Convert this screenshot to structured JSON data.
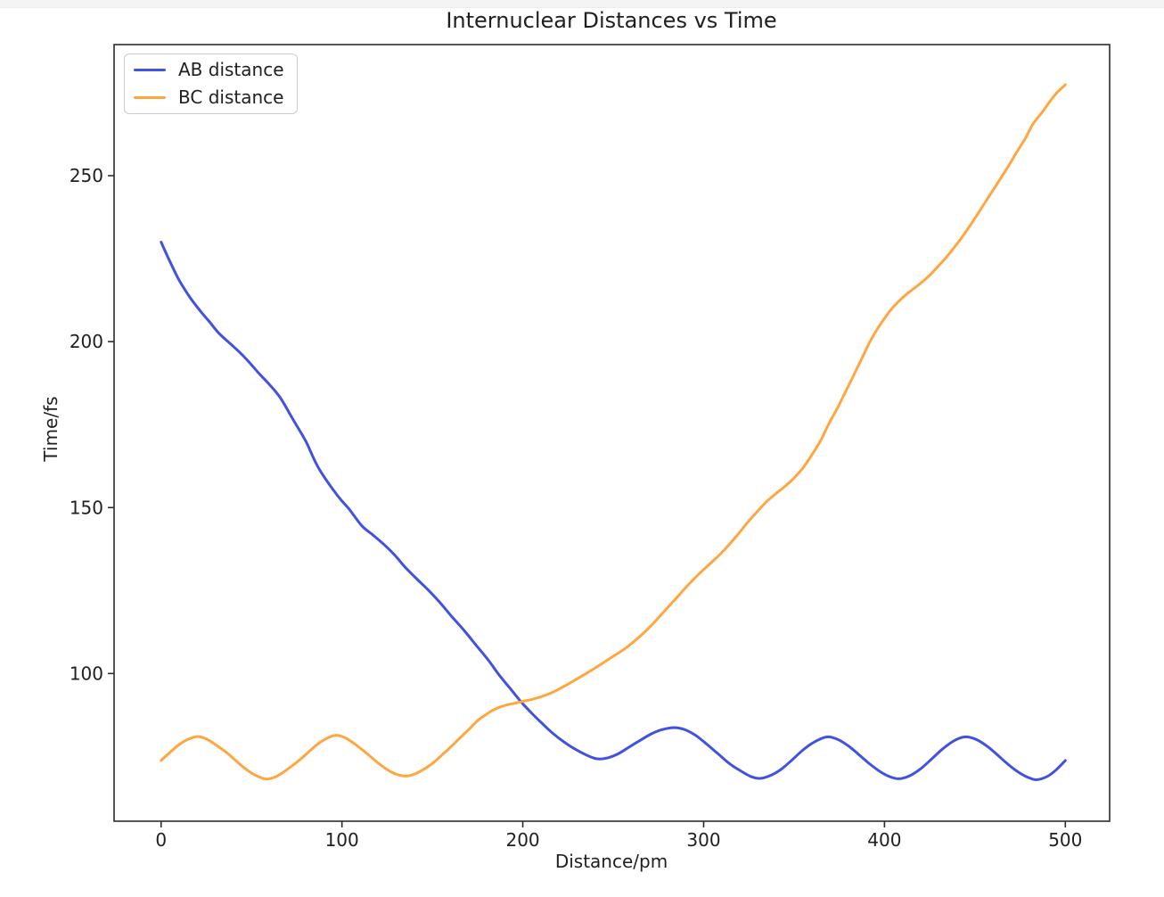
{
  "figure": {
    "background": "#ffffff",
    "top_strip_color": "#f4f4f4"
  },
  "chart_data": {
    "type": "line",
    "title": "Internuclear Distances vs Time",
    "xlabel": "Distance/pm",
    "ylabel": "Time/fs",
    "xlim": [
      -26,
      524.5
    ],
    "ylim": [
      55.5,
      289.5
    ],
    "xticks": [
      0,
      100,
      200,
      300,
      400,
      500
    ],
    "yticks": [
      100,
      150,
      200,
      250
    ],
    "grid": false,
    "axis_color": "#2b2b2b",
    "text_color": "#1f1f1f",
    "legend": {
      "position": "upper-left",
      "border_color": "#cccccc",
      "background": "#ffffff"
    },
    "series": [
      {
        "name": "AB distance",
        "color": "#4152e0",
        "points": [
          [
            0,
            230
          ],
          [
            5,
            224
          ],
          [
            10,
            218.5
          ],
          [
            16,
            213.3
          ],
          [
            22,
            209
          ],
          [
            27,
            205.8
          ],
          [
            32,
            202.5
          ],
          [
            38,
            199.5
          ],
          [
            44,
            196.5
          ],
          [
            49,
            193.6
          ],
          [
            54,
            190.5
          ],
          [
            60,
            187
          ],
          [
            66,
            183
          ],
          [
            73,
            176.5
          ],
          [
            80,
            170
          ],
          [
            87,
            162
          ],
          [
            97,
            154
          ],
          [
            104,
            149.5
          ],
          [
            111,
            144.5
          ],
          [
            117,
            141.8
          ],
          [
            123,
            139
          ],
          [
            129,
            135.8
          ],
          [
            135,
            132
          ],
          [
            141,
            128.7
          ],
          [
            148,
            125
          ],
          [
            154,
            121.5
          ],
          [
            161,
            117
          ],
          [
            168,
            112.7
          ],
          [
            175,
            108
          ],
          [
            181,
            104
          ],
          [
            187,
            99.5
          ],
          [
            193,
            95.5
          ],
          [
            199,
            91.5
          ],
          [
            205,
            88
          ],
          [
            211,
            84.8
          ],
          [
            217,
            81.8
          ],
          [
            223,
            79.3
          ],
          [
            229,
            77.2
          ],
          [
            235,
            75.5
          ],
          [
            241,
            74.3
          ],
          [
            247,
            74.6
          ],
          [
            253,
            75.9
          ],
          [
            259,
            77.9
          ],
          [
            265,
            79.9
          ],
          [
            271,
            81.8
          ],
          [
            277,
            83.1
          ],
          [
            284,
            83.7
          ],
          [
            290,
            83
          ],
          [
            296,
            81.2
          ],
          [
            302,
            78.6
          ],
          [
            308,
            75.8
          ],
          [
            314,
            73
          ],
          [
            320,
            70.8
          ],
          [
            326,
            69
          ],
          [
            331,
            68.4
          ],
          [
            337,
            69.3
          ],
          [
            343,
            71.2
          ],
          [
            349,
            74
          ],
          [
            355,
            77
          ],
          [
            361,
            79.3
          ],
          [
            368,
            80.9
          ],
          [
            374,
            80.2
          ],
          [
            380,
            78.2
          ],
          [
            386,
            75.5
          ],
          [
            392,
            72.7
          ],
          [
            398,
            70.3
          ],
          [
            403,
            68.9
          ],
          [
            408,
            68.3
          ],
          [
            414,
            69.2
          ],
          [
            420,
            71.3
          ],
          [
            426,
            74.2
          ],
          [
            432,
            77.2
          ],
          [
            438,
            79.6
          ],
          [
            444,
            80.9
          ],
          [
            450,
            80.3
          ],
          [
            456,
            78.4
          ],
          [
            462,
            75.7
          ],
          [
            468,
            72.8
          ],
          [
            474,
            70.3
          ],
          [
            479,
            68.8
          ],
          [
            484,
            68
          ],
          [
            490,
            69
          ],
          [
            495,
            71
          ],
          [
            500,
            73.8
          ]
        ]
      },
      {
        "name": "BC distance",
        "color": "#ffa640",
        "points": [
          [
            0,
            73.8
          ],
          [
            5,
            76.3
          ],
          [
            10,
            78.6
          ],
          [
            15,
            80.2
          ],
          [
            20,
            81
          ],
          [
            25,
            80.3
          ],
          [
            30,
            78.6
          ],
          [
            35,
            76.7
          ],
          [
            40,
            74.4
          ],
          [
            45,
            72
          ],
          [
            50,
            70
          ],
          [
            54,
            68.9
          ],
          [
            58,
            68.2
          ],
          [
            63,
            68.8
          ],
          [
            68,
            70.4
          ],
          [
            73,
            72.4
          ],
          [
            78,
            74.6
          ],
          [
            83,
            77.1
          ],
          [
            88,
            79.3
          ],
          [
            93,
            80.8
          ],
          [
            97,
            81.4
          ],
          [
            102,
            80.6
          ],
          [
            107,
            78.8
          ],
          [
            112,
            76.7
          ],
          [
            117,
            74.4
          ],
          [
            122,
            72.2
          ],
          [
            127,
            70.4
          ],
          [
            131,
            69.5
          ],
          [
            136,
            69.1
          ],
          [
            141,
            69.9
          ],
          [
            146,
            71.4
          ],
          [
            151,
            73.3
          ],
          [
            156,
            75.8
          ],
          [
            161,
            78.3
          ],
          [
            166,
            81
          ],
          [
            171,
            83.6
          ],
          [
            175,
            85.8
          ],
          [
            179,
            87.4
          ],
          [
            183,
            88.8
          ],
          [
            187,
            89.8
          ],
          [
            191,
            90.5
          ],
          [
            196,
            91.1
          ],
          [
            200,
            91.6
          ],
          [
            205,
            92.2
          ],
          [
            210,
            93
          ],
          [
            215,
            94
          ],
          [
            220,
            95.3
          ],
          [
            225,
            96.8
          ],
          [
            230,
            98.4
          ],
          [
            235,
            100
          ],
          [
            241,
            102
          ],
          [
            248,
            104.5
          ],
          [
            256,
            107.3
          ],
          [
            262,
            109.9
          ],
          [
            268,
            112.8
          ],
          [
            274,
            116.2
          ],
          [
            280,
            119.8
          ],
          [
            286,
            123.4
          ],
          [
            292,
            127
          ],
          [
            298,
            130.3
          ],
          [
            305,
            133.8
          ],
          [
            311,
            137
          ],
          [
            318,
            141.3
          ],
          [
            324,
            145.3
          ],
          [
            330,
            149
          ],
          [
            335,
            151.9
          ],
          [
            340,
            154.2
          ],
          [
            345,
            156.4
          ],
          [
            350,
            158.9
          ],
          [
            355,
            162
          ],
          [
            360,
            166
          ],
          [
            365,
            170.5
          ],
          [
            369,
            175
          ],
          [
            374,
            180
          ],
          [
            379,
            185.5
          ],
          [
            384,
            191
          ],
          [
            388,
            195.5
          ],
          [
            392,
            200
          ],
          [
            396,
            203.8
          ],
          [
            400,
            207
          ],
          [
            404,
            209.9
          ],
          [
            408,
            212.2
          ],
          [
            412,
            214.2
          ],
          [
            416,
            215.9
          ],
          [
            420,
            217.6
          ],
          [
            425,
            220
          ],
          [
            430,
            222.9
          ],
          [
            434,
            225.3
          ],
          [
            438,
            228
          ],
          [
            442,
            230.8
          ],
          [
            446,
            233.9
          ],
          [
            451,
            238
          ],
          [
            455,
            241.4
          ],
          [
            460,
            245.6
          ],
          [
            464,
            249
          ],
          [
            469,
            253.3
          ],
          [
            473,
            257
          ],
          [
            478,
            261.3
          ],
          [
            482,
            265.5
          ],
          [
            487,
            269
          ],
          [
            491,
            272
          ],
          [
            495,
            274.8
          ],
          [
            500,
            277.4
          ]
        ]
      }
    ]
  }
}
